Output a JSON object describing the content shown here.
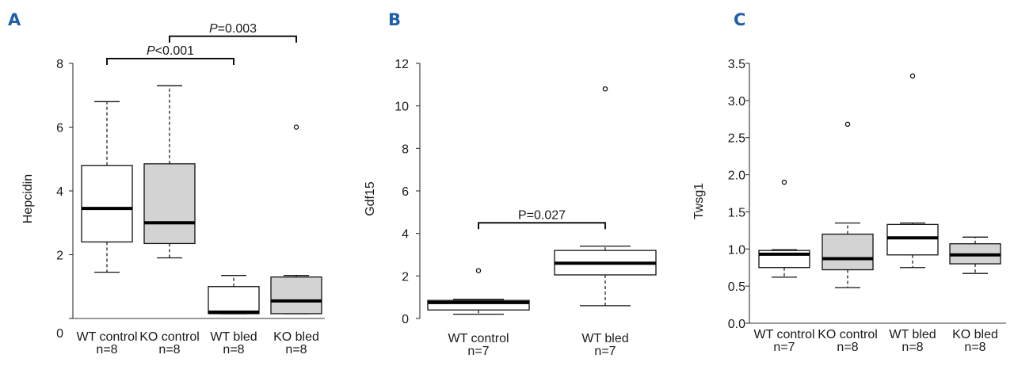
{
  "chart_data": [
    {
      "type": "box",
      "panel": "A",
      "ylabel": "Hepcidin",
      "ylim": [
        0,
        8
      ],
      "yticks": [
        "0",
        "2",
        "4",
        "6",
        "8"
      ],
      "categories": [
        {
          "label": "WT control",
          "n": "n=8",
          "fill": "#ffffff",
          "whisker_low": 1.45,
          "q1": 2.4,
          "median": 3.45,
          "q3": 4.8,
          "whisker_high": 6.8,
          "outliers": []
        },
        {
          "label": "KO control",
          "n": "n=8",
          "fill": "#d3d3d3",
          "whisker_low": 1.9,
          "q1": 2.35,
          "median": 3.0,
          "q3": 4.85,
          "whisker_high": 7.3,
          "outliers": []
        },
        {
          "label": "WT bled",
          "n": "n=8",
          "fill": "#ffffff",
          "whisker_low": 0.15,
          "q1": 0.15,
          "median": 0.2,
          "q3": 1.0,
          "whisker_high": 1.35,
          "outliers": []
        },
        {
          "label": "KO bled",
          "n": "n=8",
          "fill": "#d3d3d3",
          "whisker_low": 0.15,
          "q1": 0.15,
          "median": 0.55,
          "q3": 1.3,
          "whisker_high": 1.35,
          "outliers": [
            6.0
          ]
        }
      ],
      "annotations": [
        {
          "from": 0,
          "to": 2,
          "level": 8.15,
          "italic": "P",
          "rest": "<0.001"
        },
        {
          "from": 1,
          "to": 3,
          "level": 8.85,
          "italic": "P",
          "rest": "=0.003"
        }
      ]
    },
    {
      "type": "box",
      "panel": "B",
      "ylabel": "Gdf15",
      "ylim": [
        0,
        12
      ],
      "yticks": [
        "0",
        "2",
        "4",
        "6",
        "8",
        "10",
        "12"
      ],
      "categories": [
        {
          "label": "WT control",
          "n": "n=7",
          "fill": "#ffffff",
          "whisker_low": 0.2,
          "q1": 0.4,
          "median": 0.75,
          "q3": 0.85,
          "whisker_high": 0.9,
          "outliers": [
            2.25
          ]
        },
        {
          "label": "WT bled",
          "n": "n=7",
          "fill": "#ffffff",
          "whisker_low": 0.6,
          "q1": 2.05,
          "median": 2.6,
          "q3": 3.2,
          "whisker_high": 3.4,
          "outliers": [
            10.8
          ]
        }
      ],
      "annotations": [
        {
          "from": 0,
          "to": 1,
          "level": 4.5,
          "italic": "",
          "rest": "P=0.027"
        }
      ]
    },
    {
      "type": "box",
      "panel": "C",
      "ylabel": "Twsg1",
      "ylim": [
        0,
        3.5
      ],
      "yticks": [
        "0.0",
        "0.5",
        "1.0",
        "1.5",
        "2.0",
        "2.5",
        "3.0",
        "3.5"
      ],
      "categories": [
        {
          "label": "WT control",
          "n": "n=7",
          "fill": "#ffffff",
          "whisker_low": 0.62,
          "q1": 0.75,
          "median": 0.93,
          "q3": 0.98,
          "whisker_high": 0.99,
          "outliers": [
            1.9
          ]
        },
        {
          "label": "KO control",
          "n": "n=8",
          "fill": "#d3d3d3",
          "whisker_low": 0.48,
          "q1": 0.72,
          "median": 0.87,
          "q3": 1.2,
          "whisker_high": 1.35,
          "outliers": [
            2.68
          ]
        },
        {
          "label": "WT bled",
          "n": "n=8",
          "fill": "#ffffff",
          "whisker_low": 0.75,
          "q1": 0.92,
          "median": 1.15,
          "q3": 1.33,
          "whisker_high": 1.35,
          "outliers": [
            3.33
          ]
        },
        {
          "label": "KO bled",
          "n": "n=8",
          "fill": "#d3d3d3",
          "whisker_low": 0.67,
          "q1": 0.8,
          "median": 0.92,
          "q3": 1.07,
          "whisker_high": 1.16,
          "outliers": []
        }
      ],
      "annotations": []
    }
  ]
}
